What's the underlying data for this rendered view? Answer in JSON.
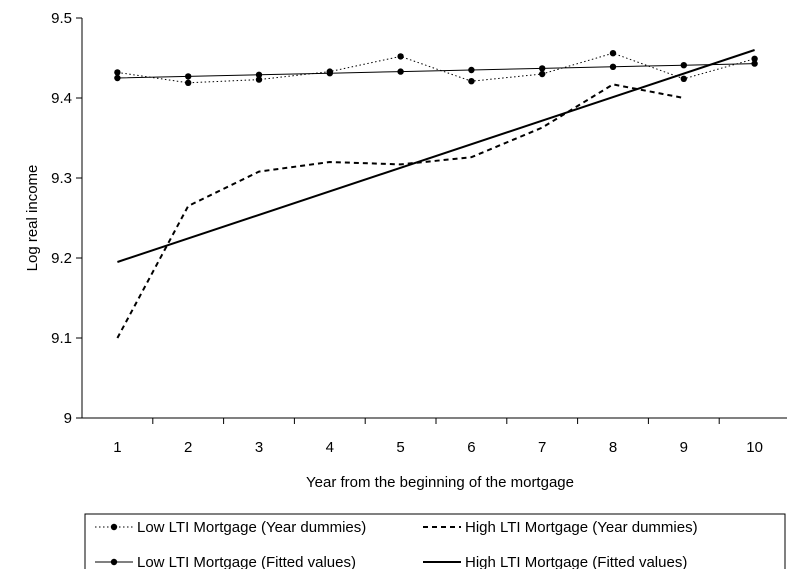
{
  "chart_data": {
    "type": "line",
    "title": "",
    "xlabel": "Year from the beginning of the mortgage",
    "ylabel": "Log real income",
    "x": [
      1,
      2,
      3,
      4,
      5,
      6,
      7,
      8,
      9,
      10
    ],
    "x_tick_labels": [
      "1",
      "2",
      "3",
      "4",
      "5",
      "6",
      "7",
      "8",
      "9",
      "10"
    ],
    "ylim": [
      9.0,
      9.5
    ],
    "y_ticks": [
      9.0,
      9.1,
      9.2,
      9.3,
      9.4,
      9.5
    ],
    "y_tick_labels": [
      "9",
      "9.1",
      "9.2",
      "9.3",
      "9.4",
      "9.5"
    ],
    "grid": false,
    "legend_position": "bottom",
    "series": [
      {
        "name": "Low LTI Mortgage (Year dummies)",
        "style": "dotted-markers",
        "x": [
          1,
          2,
          3,
          4,
          5,
          6,
          7,
          8,
          9,
          10
        ],
        "values": [
          9.432,
          9.419,
          9.423,
          9.433,
          9.452,
          9.421,
          9.43,
          9.456,
          9.424,
          9.449
        ]
      },
      {
        "name": "High LTI Mortgage (Year dummies)",
        "style": "dashed",
        "x": [
          1,
          2,
          3,
          4,
          5,
          6,
          7,
          8,
          9
        ],
        "values": [
          9.1,
          9.265,
          9.308,
          9.32,
          9.317,
          9.326,
          9.363,
          9.417,
          9.4
        ]
      },
      {
        "name": "Low LTI Mortgage (Fitted values)",
        "style": "solid-markers",
        "x": [
          1,
          2,
          3,
          4,
          5,
          6,
          7,
          8,
          9,
          10
        ],
        "values": [
          9.425,
          9.427,
          9.429,
          9.431,
          9.433,
          9.435,
          9.437,
          9.439,
          9.441,
          9.443
        ]
      },
      {
        "name": "High LTI Mortgage (Fitted values)",
        "style": "solid-thick",
        "x": [
          1,
          10
        ],
        "values": [
          9.195,
          9.46
        ]
      }
    ]
  }
}
